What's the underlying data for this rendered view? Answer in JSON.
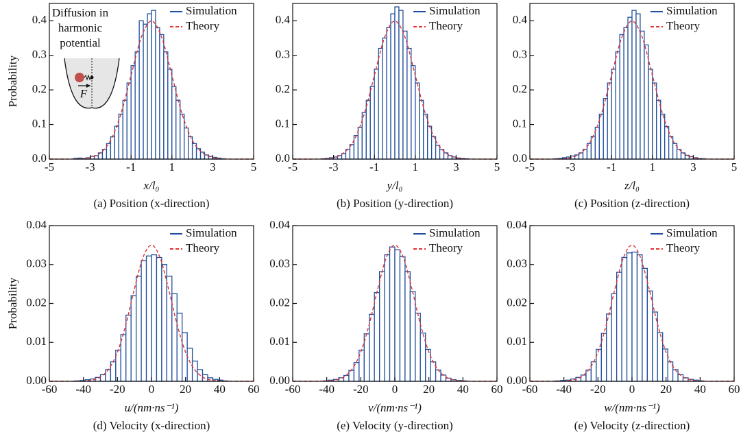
{
  "chart_data": [
    {
      "type": "histogram",
      "ylabel": "Probability",
      "xlabel": "x/l₀",
      "caption": "(a) Position (x-direction)",
      "inset": {
        "lines": [
          "Diffusion in",
          "harmonic",
          "potential"
        ],
        "force_label": "F"
      },
      "xlim": [
        -5,
        5
      ],
      "xticks": [
        -5,
        -3,
        -1,
        1,
        3,
        5
      ],
      "ylim": [
        0,
        0.45
      ],
      "yticks": [
        {
          "value": 0,
          "label": "0.0"
        },
        0.1,
        0.2,
        0.3,
        0.4
      ],
      "bins": [
        -4,
        -3.8,
        -3.6,
        -3.4,
        -3.2,
        -3,
        -2.8,
        -2.6,
        -2.4,
        -2.2,
        -2,
        -1.8,
        -1.6,
        -1.4,
        -1.2,
        -1,
        -0.8,
        -0.6,
        -0.4,
        -0.2,
        0,
        0.2,
        0.4,
        0.6,
        0.8,
        1,
        1.2,
        1.4,
        1.6,
        1.8,
        2,
        2.2,
        2.4,
        2.6,
        2.8,
        3,
        3.2,
        3.4,
        3.6,
        3.8,
        4
      ],
      "series": [
        {
          "name": "Simulation",
          "color": "#1f4e9c",
          "values": [
            0,
            0.002,
            0.003,
            0.002,
            0.004,
            0.008,
            0.01,
            0.018,
            0.028,
            0.045,
            0.065,
            0.095,
            0.13,
            0.17,
            0.22,
            0.27,
            0.31,
            0.4,
            0.39,
            0.42,
            0.43,
            0.38,
            0.36,
            0.31,
            0.26,
            0.21,
            0.17,
            0.13,
            0.09,
            0.065,
            0.045,
            0.03,
            0.02,
            0.012,
            0.008,
            0.005,
            0.003,
            0.001,
            0,
            0
          ]
        },
        {
          "name": "Theory",
          "color": "#e03030",
          "x": [
            -5,
            -4.5,
            -4,
            -3.5,
            -3,
            -2.5,
            -2,
            -1.5,
            -1,
            -0.5,
            0,
            0.5,
            1,
            1.5,
            2,
            2.5,
            3,
            3.5,
            4,
            4.5,
            5
          ],
          "values": [
            0,
            0,
            0.0001,
            0.0009,
            0.0044,
            0.018,
            0.054,
            0.13,
            0.242,
            0.352,
            0.399,
            0.352,
            0.242,
            0.13,
            0.054,
            0.018,
            0.0044,
            0.0009,
            0.0001,
            0,
            0
          ]
        }
      ]
    },
    {
      "type": "histogram",
      "xlabel": "y/l₀",
      "caption": "(b) Position (y-direction)",
      "xlim": [
        -5,
        5
      ],
      "xticks": [
        -5,
        -3,
        -1,
        1,
        3,
        5
      ],
      "ylim": [
        0,
        0.45
      ],
      "yticks": [
        {
          "value": 0,
          "label": "0.0"
        },
        0.1,
        0.2,
        0.3,
        0.4
      ],
      "bins": [
        -4,
        -3.8,
        -3.6,
        -3.4,
        -3.2,
        -3,
        -2.8,
        -2.6,
        -2.4,
        -2.2,
        -2,
        -1.8,
        -1.6,
        -1.4,
        -1.2,
        -1,
        -0.8,
        -0.6,
        -0.4,
        -0.2,
        0,
        0.2,
        0.4,
        0.6,
        0.8,
        1,
        1.2,
        1.4,
        1.6,
        1.8,
        2,
        2.2,
        2.4,
        2.6,
        2.8,
        3,
        3.2,
        3.4,
        3.6,
        3.8,
        4
      ],
      "series": [
        {
          "name": "Simulation",
          "color": "#1f4e9c",
          "values": [
            0,
            0,
            0.001,
            0.002,
            0.004,
            0.006,
            0.01,
            0.016,
            0.028,
            0.042,
            0.068,
            0.092,
            0.135,
            0.17,
            0.21,
            0.26,
            0.32,
            0.35,
            0.38,
            0.42,
            0.44,
            0.43,
            0.37,
            0.32,
            0.27,
            0.22,
            0.17,
            0.13,
            0.095,
            0.065,
            0.04,
            0.028,
            0.018,
            0.01,
            0.006,
            0.003,
            0.002,
            0.001,
            0,
            0
          ]
        },
        {
          "name": "Theory",
          "color": "#e03030",
          "x": [
            -5,
            -4.5,
            -4,
            -3.5,
            -3,
            -2.5,
            -2,
            -1.5,
            -1,
            -0.5,
            0,
            0.5,
            1,
            1.5,
            2,
            2.5,
            3,
            3.5,
            4,
            4.5,
            5
          ],
          "values": [
            0,
            0,
            0.0001,
            0.0009,
            0.0044,
            0.018,
            0.054,
            0.13,
            0.242,
            0.352,
            0.399,
            0.352,
            0.242,
            0.13,
            0.054,
            0.018,
            0.0044,
            0.0009,
            0.0001,
            0,
            0
          ]
        }
      ]
    },
    {
      "type": "histogram",
      "xlabel": "z/l₀",
      "caption": "(c) Position (z-direction)",
      "xlim": [
        -5,
        5
      ],
      "xticks": [
        -5,
        -3,
        -1,
        1,
        3,
        5
      ],
      "ylim": [
        0,
        0.45
      ],
      "yticks": [
        {
          "value": 0,
          "label": "0.0"
        },
        0.1,
        0.2,
        0.3,
        0.4
      ],
      "bins": [
        -4,
        -3.8,
        -3.6,
        -3.4,
        -3.2,
        -3,
        -2.8,
        -2.6,
        -2.4,
        -2.2,
        -2,
        -1.8,
        -1.6,
        -1.4,
        -1.2,
        -1,
        -0.8,
        -0.6,
        -0.4,
        -0.2,
        0,
        0.2,
        0.4,
        0.6,
        0.8,
        1,
        1.2,
        1.4,
        1.6,
        1.8,
        2,
        2.2,
        2.4,
        2.6,
        2.8,
        3,
        3.2,
        3.4,
        3.6,
        3.8,
        4
      ],
      "series": [
        {
          "name": "Simulation",
          "color": "#1f4e9c",
          "values": [
            0,
            0.001,
            0.002,
            0.004,
            0.006,
            0.009,
            0.012,
            0.018,
            0.028,
            0.045,
            0.066,
            0.092,
            0.13,
            0.175,
            0.22,
            0.26,
            0.31,
            0.36,
            0.38,
            0.41,
            0.43,
            0.42,
            0.37,
            0.33,
            0.26,
            0.22,
            0.17,
            0.13,
            0.094,
            0.066,
            0.045,
            0.028,
            0.018,
            0.011,
            0.007,
            0.004,
            0.002,
            0.001,
            0,
            0
          ]
        },
        {
          "name": "Theory",
          "color": "#e03030",
          "x": [
            -5,
            -4.5,
            -4,
            -3.5,
            -3,
            -2.5,
            -2,
            -1.5,
            -1,
            -0.5,
            0,
            0.5,
            1,
            1.5,
            2,
            2.5,
            3,
            3.5,
            4,
            4.5,
            5
          ],
          "values": [
            0,
            0,
            0.0001,
            0.0009,
            0.0044,
            0.018,
            0.054,
            0.13,
            0.242,
            0.352,
            0.399,
            0.352,
            0.242,
            0.13,
            0.054,
            0.018,
            0.0044,
            0.0009,
            0.0001,
            0,
            0
          ]
        }
      ]
    },
    {
      "type": "histogram",
      "ylabel": "Probability",
      "xlabel": "u/(nm·ns⁻¹)",
      "caption": "(d) Velocity (x-direction)",
      "xlim": [
        -60,
        60
      ],
      "xticks": [
        -60,
        -40,
        -20,
        0,
        20,
        40,
        60
      ],
      "ylim": [
        0,
        0.04
      ],
      "yticks": [
        {
          "value": 0,
          "label": "0.00"
        },
        0.01,
        0.02,
        0.03,
        {
          "value": 0.04,
          "label": "0.04"
        }
      ],
      "bins": [
        -48,
        -45,
        -42,
        -39,
        -36,
        -33,
        -30,
        -27,
        -24,
        -21,
        -18,
        -15,
        -12,
        -9,
        -6,
        -3,
        0,
        3,
        6,
        9,
        12,
        15,
        18,
        21,
        24,
        27,
        30,
        33,
        36,
        39,
        42,
        45,
        48
      ],
      "series": [
        {
          "name": "Simulation",
          "color": "#1f4e9c",
          "values": [
            0,
            0.0001,
            0.0002,
            0.0004,
            0.0006,
            0.001,
            0.0017,
            0.003,
            0.005,
            0.008,
            0.012,
            0.017,
            0.022,
            0.027,
            0.031,
            0.0322,
            0.0325,
            0.0318,
            0.03,
            0.027,
            0.0225,
            0.0175,
            0.0125,
            0.0085,
            0.0052,
            0.003,
            0.0017,
            0.0009,
            0.0005,
            0.0003,
            0.0001,
            0
          ]
        },
        {
          "name": "Theory",
          "color": "#e03030",
          "x": [
            -60,
            -55,
            -50,
            -45,
            -40,
            -35,
            -30,
            -25,
            -20,
            -15,
            -10,
            -5,
            0,
            5,
            10,
            15,
            20,
            25,
            30,
            35,
            40,
            45,
            50,
            55,
            60
          ],
          "values": [
            0,
            0,
            0,
            0,
            0.0001,
            0.0003,
            0.0011,
            0.0032,
            0.0075,
            0.0147,
            0.0238,
            0.0318,
            0.035,
            0.0318,
            0.0238,
            0.0147,
            0.0075,
            0.0032,
            0.0011,
            0.0003,
            0.0001,
            0,
            0,
            0,
            0
          ]
        }
      ]
    },
    {
      "type": "histogram",
      "xlabel": "v/(nm·ns⁻¹)",
      "caption": "(e) Velocity (y-direction)",
      "xlim": [
        -60,
        60
      ],
      "xticks": [
        -60,
        -40,
        -20,
        0,
        20,
        40,
        60
      ],
      "ylim": [
        0,
        0.04
      ],
      "yticks": [
        {
          "value": 0,
          "label": "0.00"
        },
        0.01,
        0.02,
        0.03,
        {
          "value": 0.04,
          "label": "0.04"
        }
      ],
      "bins": [
        -48,
        -45,
        -42,
        -39,
        -36,
        -33,
        -30,
        -27,
        -24,
        -21,
        -18,
        -15,
        -12,
        -9,
        -6,
        -3,
        0,
        3,
        6,
        9,
        12,
        15,
        18,
        21,
        24,
        27,
        30,
        33,
        36,
        39,
        42,
        45,
        48
      ],
      "series": [
        {
          "name": "Simulation",
          "color": "#1f4e9c",
          "values": [
            0,
            0,
            0.0001,
            0.0003,
            0.0005,
            0.0009,
            0.0015,
            0.0028,
            0.0048,
            0.008,
            0.0122,
            0.0172,
            0.0228,
            0.0282,
            0.0325,
            0.0345,
            0.0338,
            0.032,
            0.0282,
            0.023,
            0.0175,
            0.0124,
            0.0082,
            0.005,
            0.0029,
            0.0016,
            0.0008,
            0.0004,
            0.0002,
            0.0001,
            0,
            0
          ]
        },
        {
          "name": "Theory",
          "color": "#e03030",
          "x": [
            -60,
            -55,
            -50,
            -45,
            -40,
            -35,
            -30,
            -25,
            -20,
            -15,
            -10,
            -5,
            0,
            5,
            10,
            15,
            20,
            25,
            30,
            35,
            40,
            45,
            50,
            55,
            60
          ],
          "values": [
            0,
            0,
            0,
            0,
            0.0001,
            0.0003,
            0.0011,
            0.0032,
            0.0075,
            0.0147,
            0.0238,
            0.0318,
            0.035,
            0.0318,
            0.0238,
            0.0147,
            0.0075,
            0.0032,
            0.0011,
            0.0003,
            0.0001,
            0,
            0,
            0,
            0
          ]
        }
      ]
    },
    {
      "type": "histogram",
      "xlabel": "w/(nm·ns⁻¹)",
      "caption": "(e) Velocity (z-direction)",
      "xlim": [
        -60,
        60
      ],
      "xticks": [
        -60,
        -40,
        -20,
        0,
        20,
        40,
        60
      ],
      "ylim": [
        0,
        0.04
      ],
      "yticks": [
        {
          "value": 0,
          "label": "0.00"
        },
        0.01,
        0.02,
        0.03,
        {
          "value": 0.04,
          "label": "0.04"
        }
      ],
      "bins": [
        -48,
        -45,
        -42,
        -39,
        -36,
        -33,
        -30,
        -27,
        -24,
        -21,
        -18,
        -15,
        -12,
        -9,
        -6,
        -3,
        0,
        3,
        6,
        9,
        12,
        15,
        18,
        21,
        24,
        27,
        30,
        33,
        36,
        39,
        42,
        45,
        48
      ],
      "series": [
        {
          "name": "Simulation",
          "color": "#1f4e9c",
          "values": [
            0,
            0.0001,
            0.0002,
            0.0003,
            0.0006,
            0.001,
            0.0016,
            0.0029,
            0.005,
            0.0082,
            0.0123,
            0.0173,
            0.0225,
            0.028,
            0.0318,
            0.033,
            0.0332,
            0.0325,
            0.029,
            0.0232,
            0.0178,
            0.0125,
            0.0083,
            0.005,
            0.003,
            0.0017,
            0.0009,
            0.0005,
            0.0003,
            0.0001,
            0,
            0
          ]
        },
        {
          "name": "Theory",
          "color": "#e03030",
          "x": [
            -60,
            -55,
            -50,
            -45,
            -40,
            -35,
            -30,
            -25,
            -20,
            -15,
            -10,
            -5,
            0,
            5,
            10,
            15,
            20,
            25,
            30,
            35,
            40,
            45,
            50,
            55,
            60
          ],
          "values": [
            0,
            0,
            0,
            0,
            0.0001,
            0.0003,
            0.0011,
            0.0032,
            0.0075,
            0.0147,
            0.0238,
            0.0318,
            0.035,
            0.0318,
            0.0238,
            0.0147,
            0.0075,
            0.0032,
            0.0011,
            0.0003,
            0.0001,
            0,
            0,
            0,
            0
          ]
        }
      ]
    }
  ]
}
